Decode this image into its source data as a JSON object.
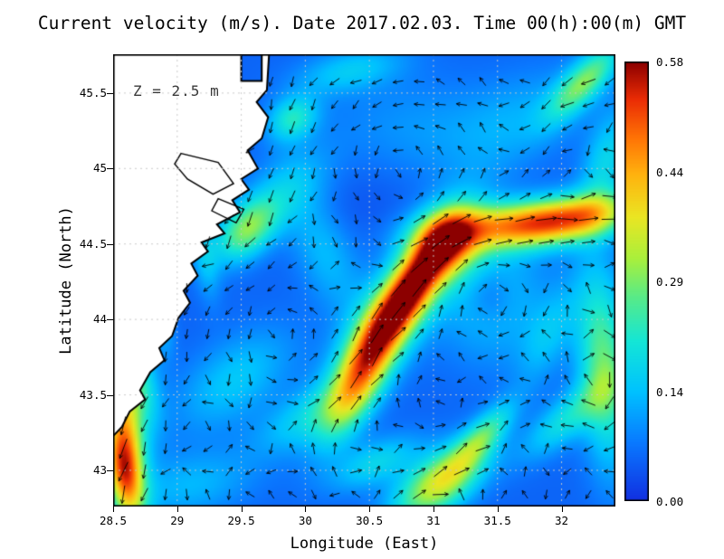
{
  "chart_data": {
    "type": "heatmap",
    "subtype": "vector-field-map",
    "title": "Current velocity (m/s). Date 2017.02.03. Time 00(h):00(m) GMT",
    "annotation": "Z = 2.5 m",
    "xlabel": "Longitude (East)",
    "ylabel": "Latitude (North)",
    "x_range": [
      28.5,
      32.42
    ],
    "y_range": [
      42.76,
      45.757
    ],
    "x_ticks": [
      {
        "v": 28.5,
        "label": "28.5"
      },
      {
        "v": 29.0,
        "label": "29"
      },
      {
        "v": 29.5,
        "label": "29.5"
      },
      {
        "v": 30.0,
        "label": "30"
      },
      {
        "v": 30.5,
        "label": "30.5"
      },
      {
        "v": 31.0,
        "label": "31"
      },
      {
        "v": 31.5,
        "label": "31.5"
      },
      {
        "v": 32.0,
        "label": "32"
      }
    ],
    "y_ticks": [
      {
        "v": 43.0,
        "label": "43"
      },
      {
        "v": 43.5,
        "label": "43.5"
      },
      {
        "v": 44.0,
        "label": "44"
      },
      {
        "v": 44.5,
        "label": "44.5"
      },
      {
        "v": 45.0,
        "label": "45"
      },
      {
        "v": 45.5,
        "label": "45.5"
      }
    ],
    "colorbar": {
      "min": 0.0,
      "max": 0.58,
      "unit": "m/s",
      "tick_labels": [
        "0.58",
        "0.44",
        "0.29",
        "0.14",
        "0.00"
      ]
    },
    "colormap": [
      [
        0.0,
        18,
        48,
        225
      ],
      [
        0.075,
        10,
        120,
        255
      ],
      [
        0.145,
        0,
        195,
        255
      ],
      [
        0.21,
        20,
        230,
        215
      ],
      [
        0.27,
        90,
        235,
        135
      ],
      [
        0.32,
        170,
        240,
        60
      ],
      [
        0.375,
        235,
        230,
        35
      ],
      [
        0.43,
        255,
        180,
        15
      ],
      [
        0.48,
        255,
        115,
        5
      ],
      [
        0.53,
        235,
        45,
        5
      ],
      [
        0.58,
        140,
        0,
        0
      ]
    ],
    "speed_base": 0.055,
    "speed_features": [
      [
        30.72,
        44.08,
        0.3,
        0.5,
        0.16,
        52
      ],
      [
        30.88,
        44.27,
        0.24,
        0.25,
        0.1,
        52
      ],
      [
        30.62,
        43.95,
        0.2,
        0.28,
        0.1,
        52
      ],
      [
        30.4,
        43.55,
        0.22,
        0.3,
        0.12,
        58
      ],
      [
        31.12,
        44.5,
        0.28,
        0.18,
        0.14,
        30
      ],
      [
        31.6,
        44.62,
        0.3,
        0.45,
        0.11,
        4
      ],
      [
        32.1,
        44.68,
        0.28,
        0.35,
        0.1,
        8
      ],
      [
        28.6,
        43.2,
        0.34,
        0.4,
        0.1,
        97
      ],
      [
        28.56,
        43.0,
        0.22,
        0.2,
        0.09,
        100
      ],
      [
        28.7,
        43.62,
        0.15,
        0.25,
        0.1,
        105
      ],
      [
        31.05,
        42.92,
        0.3,
        0.28,
        0.13,
        30
      ],
      [
        31.38,
        43.22,
        0.18,
        0.22,
        0.08,
        42
      ],
      [
        30.55,
        43.05,
        0.12,
        0.25,
        0.1,
        20
      ],
      [
        32.33,
        43.7,
        0.22,
        0.45,
        0.14,
        95
      ],
      [
        32.05,
        43.35,
        0.14,
        0.28,
        0.1,
        35
      ],
      [
        29.55,
        44.6,
        0.24,
        0.2,
        0.12,
        35
      ],
      [
        29.9,
        45.33,
        0.16,
        0.14,
        0.1,
        20
      ],
      [
        32.18,
        45.58,
        0.22,
        0.25,
        0.09,
        40
      ],
      [
        32.35,
        45.05,
        0.12,
        0.25,
        0.12,
        70
      ],
      [
        31.45,
        44.15,
        0.1,
        0.3,
        0.3,
        0
      ],
      [
        31.45,
        44.15,
        -0.06,
        0.12,
        0.12,
        0
      ],
      [
        30.15,
        44.45,
        0.09,
        0.32,
        0.16,
        120
      ],
      [
        29.9,
        44.9,
        0.08,
        0.25,
        0.15,
        30
      ],
      [
        30.85,
        45.25,
        0.05,
        0.5,
        0.25,
        0
      ],
      [
        29.45,
        43.6,
        0.1,
        0.35,
        0.18,
        30
      ],
      [
        30.0,
        43.35,
        0.1,
        0.3,
        0.12,
        25
      ],
      [
        29.1,
        42.9,
        0.08,
        0.35,
        0.15,
        10
      ],
      [
        31.9,
        43.9,
        0.08,
        0.25,
        0.12,
        60
      ],
      [
        30.45,
        44.75,
        -0.02,
        0.4,
        0.3,
        0
      ],
      [
        31.7,
        45.35,
        0.06,
        0.4,
        0.2,
        20
      ],
      [
        30.35,
        45.65,
        0.1,
        0.3,
        0.1,
        10
      ],
      [
        29.22,
        44.4,
        0.08,
        0.2,
        0.07,
        100
      ],
      [
        28.9,
        43.95,
        0.07,
        0.15,
        0.06,
        95
      ]
    ],
    "flow": {
      "vortices": [
        [
          30.75,
          45.0,
          0.85,
          0.8
        ],
        [
          31.45,
          44.15,
          0.45,
          -0.9
        ],
        [
          29.8,
          43.95,
          0.55,
          0.8
        ],
        [
          32.25,
          43.6,
          0.5,
          -0.6
        ],
        [
          29.6,
          45.2,
          0.35,
          -0.5
        ]
      ],
      "jets": [
        [
          30.3,
          43.5,
          31.1,
          44.5,
          0.28,
          1.3
        ],
        [
          31.1,
          44.55,
          32.45,
          44.72,
          0.25,
          1.2
        ],
        [
          28.8,
          43.95,
          28.52,
          42.88,
          0.3,
          1.1
        ],
        [
          30.7,
          42.85,
          31.55,
          43.35,
          0.25,
          0.9
        ],
        [
          29.85,
          45.55,
          29.55,
          44.75,
          0.3,
          0.8
        ],
        [
          32.45,
          45.75,
          31.95,
          45.35,
          0.3,
          0.7
        ]
      ],
      "background": {
        "u": -0.12,
        "v": -0.06,
        "noise": 0.22
      }
    },
    "coastline": [
      [
        28.44,
        45.8
      ],
      [
        29.5,
        45.8
      ],
      [
        29.5,
        45.58
      ],
      [
        29.66,
        45.58
      ],
      [
        29.66,
        45.8
      ],
      [
        29.72,
        45.8
      ],
      [
        29.7,
        45.52
      ],
      [
        29.62,
        45.44
      ],
      [
        29.71,
        45.34
      ],
      [
        29.66,
        45.2
      ],
      [
        29.55,
        45.12
      ],
      [
        29.63,
        45.0
      ],
      [
        29.5,
        44.93
      ],
      [
        29.56,
        44.86
      ],
      [
        29.43,
        44.79
      ],
      [
        29.49,
        44.71
      ],
      [
        29.31,
        44.63
      ],
      [
        29.37,
        44.57
      ],
      [
        29.19,
        44.51
      ],
      [
        29.24,
        44.45
      ],
      [
        29.11,
        44.37
      ],
      [
        29.16,
        44.29
      ],
      [
        29.05,
        44.19
      ],
      [
        29.1,
        44.11
      ],
      [
        29.01,
        44.01
      ],
      [
        28.96,
        43.89
      ],
      [
        28.86,
        43.81
      ],
      [
        28.9,
        43.73
      ],
      [
        28.79,
        43.65
      ],
      [
        28.71,
        43.53
      ],
      [
        28.75,
        43.47
      ],
      [
        28.63,
        43.39
      ],
      [
        28.57,
        43.29
      ],
      [
        28.47,
        43.2
      ],
      [
        28.44,
        43.2
      ]
    ],
    "lagoons": [
      [
        [
          29.03,
          45.1
        ],
        [
          29.32,
          45.04
        ],
        [
          29.44,
          44.9
        ],
        [
          29.28,
          44.83
        ],
        [
          29.08,
          44.93
        ],
        [
          28.98,
          45.03
        ]
      ],
      [
        [
          29.32,
          44.8
        ],
        [
          29.52,
          44.73
        ],
        [
          29.46,
          44.64
        ],
        [
          29.27,
          44.72
        ]
      ]
    ],
    "arrow_grid": {
      "lon0": 28.58,
      "lat0": 42.84,
      "dlon": 0.165,
      "dlat": 0.152,
      "ncols": 24,
      "nrows": 19
    }
  }
}
